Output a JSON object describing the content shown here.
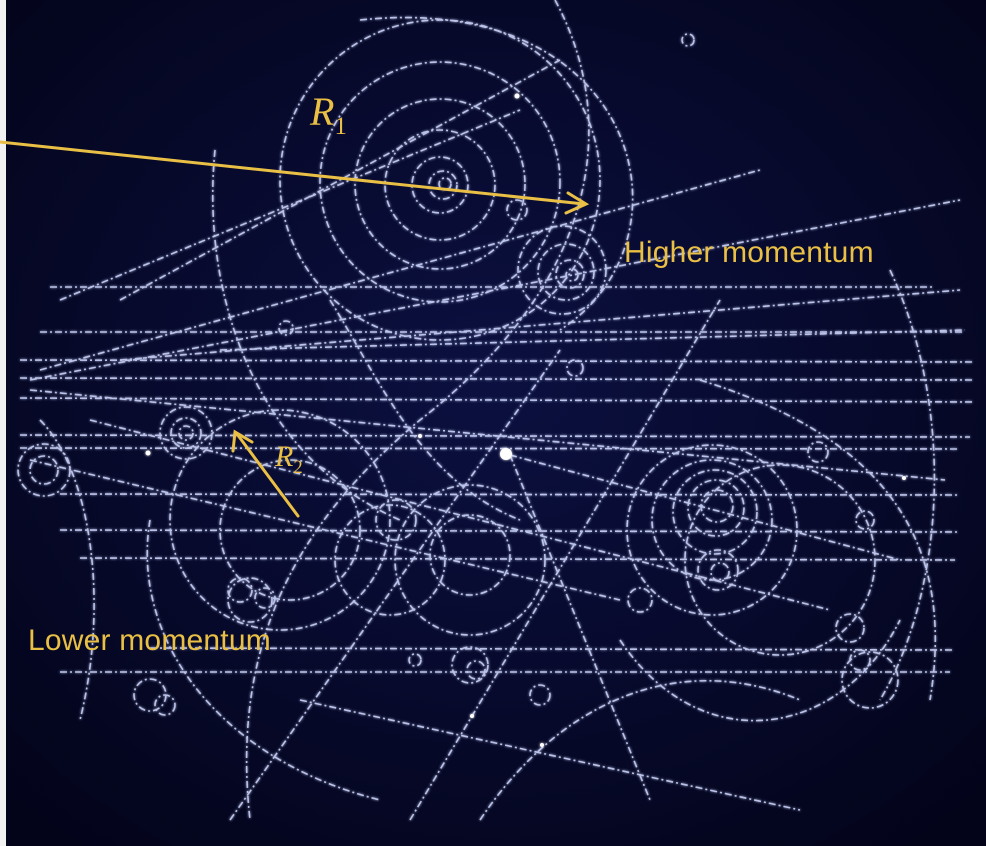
{
  "colors": {
    "background": "#06082a",
    "track": "#cfd8ff",
    "track_glow": "#7e8cff",
    "annotation": "#e9bf45"
  },
  "labels": {
    "higher": "Higher momentum",
    "lower": "Lower momentum",
    "r1_symbol": "R",
    "r1_sub": "1",
    "r2_symbol": "R",
    "r2_sub": "2"
  }
}
